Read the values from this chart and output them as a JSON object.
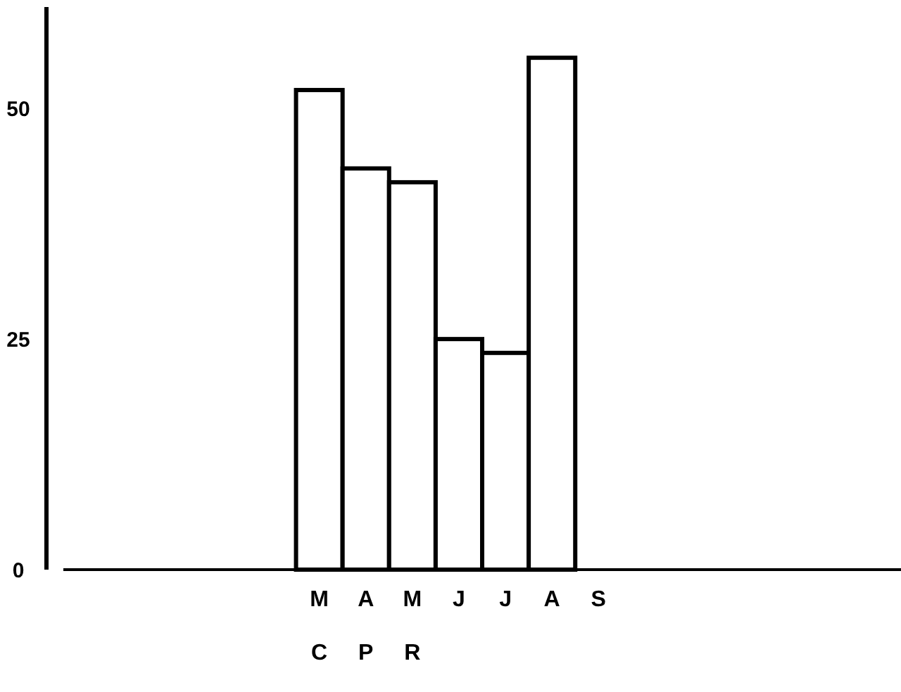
{
  "chart_data": {
    "type": "bar",
    "categories": [
      null,
      null,
      null,
      null,
      null,
      "MC",
      "AP",
      "MR",
      "J",
      "J",
      "A",
      "S",
      null,
      null,
      null,
      null,
      null,
      null
    ],
    "values": [
      null,
      null,
      null,
      null,
      null,
      52,
      43.5,
      42,
      25,
      23.5,
      55.5,
      null,
      null,
      null,
      null,
      null,
      null,
      null
    ],
    "color": "#ffffff",
    "ylim": [
      0,
      61
    ],
    "yticks": [
      0,
      25,
      50
    ]
  }
}
